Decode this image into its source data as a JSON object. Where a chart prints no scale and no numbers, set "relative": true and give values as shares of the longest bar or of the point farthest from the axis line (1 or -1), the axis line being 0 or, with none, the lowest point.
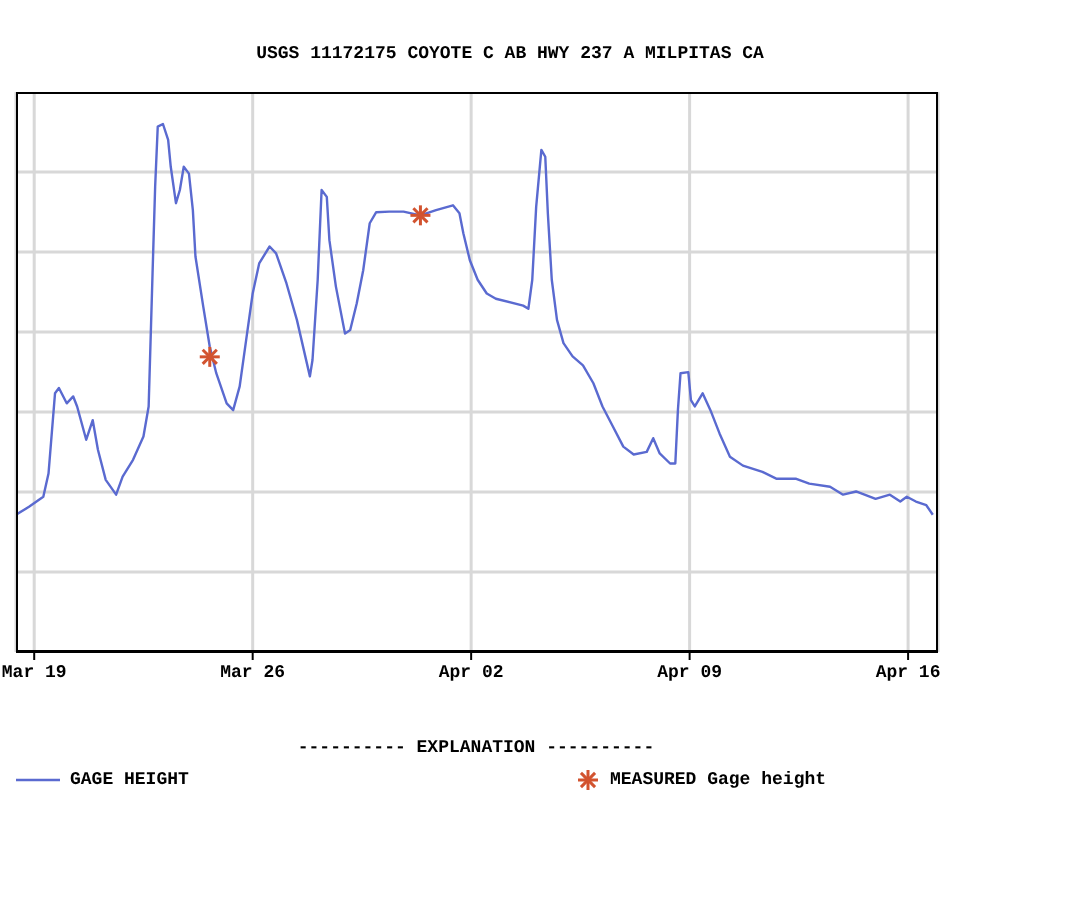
{
  "chart_data": {
    "type": "line",
    "title": "USGS 11172175 COYOTE C AB HWY 237 A MILPITAS CA",
    "legend_title": "---------- EXPLANATION ----------",
    "relative": true,
    "xlim": [
      "--03-18T10:00",
      "--04-16T23:00"
    ],
    "xticks": [
      {
        "value": "--03-19",
        "label": "Mar 19"
      },
      {
        "value": "--03-26",
        "label": "Mar 26"
      },
      {
        "value": "--04-02",
        "label": "Apr 02"
      },
      {
        "value": "--04-09",
        "label": "Apr 09"
      },
      {
        "value": "--04-16",
        "label": "Apr 16"
      }
    ],
    "grid": true,
    "legend": "bottom",
    "series": [
      {
        "name": "GAGE HEIGHT",
        "type": "line",
        "marker": "none",
        "color": "#5a6ad0",
        "x": [
          "--03-18T10:00",
          "--03-18T20:00",
          "--03-19T07:00",
          "--03-19T11:00",
          "--03-19T16:00",
          "--03-19T19:00",
          "--03-20T01:00",
          "--03-20T06:00",
          "--03-20T09:00",
          "--03-20T16:00",
          "--03-20T21:00",
          "--03-21T01:00",
          "--03-21T07:00",
          "--03-21T15:00",
          "--03-21T20:00",
          "--03-22T04:00",
          "--03-22T12:00",
          "--03-22T16:00",
          "--03-22T19:00",
          "--03-22T21:00",
          "--03-22T23:00",
          "--03-23T03:00",
          "--03-23T07:00",
          "--03-23T09:00",
          "--03-23T13:00",
          "--03-23T16:00",
          "--03-23T19:00",
          "--03-23T23:00",
          "--03-24T02:00",
          "--03-24T04:00",
          "--03-24T10:00",
          "--03-24T15:00",
          "--03-24T20:00",
          "--03-25T04:00",
          "--03-25T09:00",
          "--03-25T14:00",
          "--03-25T19:00",
          "--03-26T00:00",
          "--03-26T05:00",
          "--03-26T13:00",
          "--03-26T18:00",
          "--03-27T02:00",
          "--03-27T10:00",
          "--03-27T20:00",
          "--03-27T22:00",
          "--03-28T02:00",
          "--03-28T05:00",
          "--03-28T09:00",
          "--03-28T11:00",
          "--03-28T16:00",
          "--03-28T23:00",
          "--03-29T03:00",
          "--03-29T08:00",
          "--03-29T13:00",
          "--03-29T18:00",
          "--03-29T23:00",
          "--03-30T09:00",
          "--03-30T20:00",
          "--03-31T09:00",
          "--03-31T21:00",
          "--04-01T10:00",
          "--04-01T15:00",
          "--04-01T18:00",
          "--04-01T23:00",
          "--04-02T05:00",
          "--04-02T12:00",
          "--04-02T19:00",
          "--04-03T16:00",
          "--04-03T20:00",
          "--04-03T23:00",
          "--04-04T02:00",
          "--04-04T06:00",
          "--04-04T09:00",
          "--04-04T11:00",
          "--04-04T14:00",
          "--04-04T18:00",
          "--04-04T23:00",
          "--04-05T06:00",
          "--04-05T14:00",
          "--04-05T22:00",
          "--04-06T05:00",
          "--04-06T13:00",
          "--04-06T21:00",
          "--04-07T05:00",
          "--04-07T15:00",
          "--04-07T20:00",
          "--04-08T01:00",
          "--04-08T09:00",
          "--04-08T13:00",
          "--04-08T15:00",
          "--04-08T17:00",
          "--04-08T23:00",
          "--04-09T01:00",
          "--04-09T04:00",
          "--04-09T10:00",
          "--04-09T16:00",
          "--04-09T23:00",
          "--04-10T07:00",
          "--04-10T17:00",
          "--04-11T08:00",
          "--04-11T19:00",
          "--04-12T10:00",
          "--04-12T20:00",
          "--04-13T12:00",
          "--04-13T22:00",
          "--04-14T08:00",
          "--04-14T23:00",
          "--04-15T10:00",
          "--04-15T18:00",
          "--04-15T23:00",
          "--04-16T06:00",
          "--04-16T14:00",
          "--04-16T19:00"
        ],
        "values": [
          0.26,
          0.275,
          0.294,
          0.338,
          0.49,
          0.5,
          0.471,
          0.484,
          0.465,
          0.402,
          0.439,
          0.383,
          0.326,
          0.298,
          0.332,
          0.364,
          0.408,
          0.465,
          0.717,
          0.881,
          0.995,
          1,
          0.97,
          0.919,
          0.85,
          0.875,
          0.919,
          0.906,
          0.837,
          0.749,
          0.654,
          0.578,
          0.528,
          0.471,
          0.458,
          0.503,
          0.591,
          0.679,
          0.736,
          0.768,
          0.755,
          0.698,
          0.629,
          0.522,
          0.553,
          0.705,
          0.875,
          0.862,
          0.78,
          0.692,
          0.603,
          0.61,
          0.66,
          0.723,
          0.812,
          0.833,
          0.834,
          0.834,
          0.827,
          0.837,
          0.846,
          0.831,
          0.793,
          0.742,
          0.705,
          0.679,
          0.669,
          0.656,
          0.65,
          0.705,
          0.843,
          0.951,
          0.938,
          0.83,
          0.705,
          0.629,
          0.585,
          0.56,
          0.543,
          0.509,
          0.465,
          0.427,
          0.389,
          0.374,
          0.379,
          0.405,
          0.376,
          0.357,
          0.357,
          0.458,
          0.528,
          0.53,
          0.477,
          0.465,
          0.49,
          0.458,
          0.414,
          0.37,
          0.353,
          0.341,
          0.328,
          0.328,
          0.319,
          0.313,
          0.298,
          0.304,
          0.29,
          0.298,
          0.285,
          0.294,
          0.285,
          0.278,
          0.26
        ]
      },
      {
        "name": "MEASURED Gage height",
        "type": "scatter",
        "marker": "cross",
        "color": "#d2532f",
        "x": [
          "--03-24T15:00",
          "--03-31T09:00"
        ],
        "values": [
          0.559,
          0.827
        ]
      }
    ]
  }
}
